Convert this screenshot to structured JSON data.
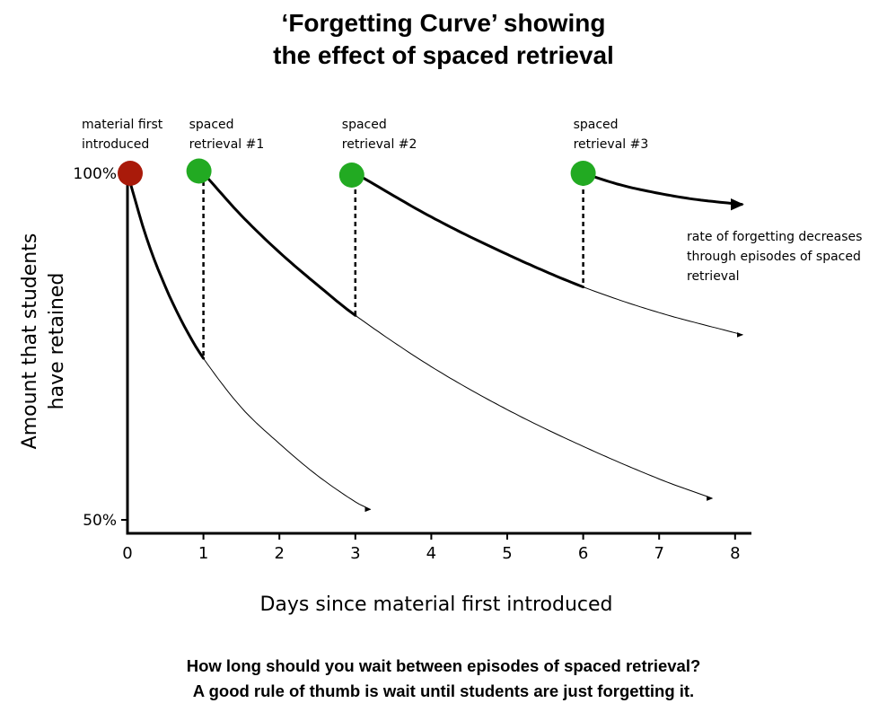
{
  "title_lines": [
    "‘Forgetting Curve’ showing",
    "the effect of spaced retrieval"
  ],
  "footer_lines": [
    "How long should you wait between episodes of spaced retrieval?",
    "A good rule of thumb is wait until students are just forgetting it."
  ],
  "chart_data": {
    "type": "line",
    "title": "‘Forgetting Curve’ showing the effect of spaced retrieval",
    "xlabel": "Days since material first introduced",
    "ylabel_lines": [
      "Amount that students",
      "have retained"
    ],
    "x_ticks": [
      0,
      1,
      2,
      3,
      4,
      5,
      6,
      7,
      8
    ],
    "y_tick_labels": [
      {
        "value": 100,
        "label": "100%"
      },
      {
        "value": 50,
        "label": "50%"
      }
    ],
    "xlim": [
      0,
      8.2
    ],
    "ylim": [
      48,
      102
    ],
    "grid": false,
    "events": [
      {
        "day": 0,
        "retained": 100,
        "label_lines": [
          "material first",
          "introduced"
        ],
        "color": "#a91a0a"
      },
      {
        "day": 1,
        "retained": 100,
        "label_lines": [
          "spaced",
          "retrieval #1"
        ],
        "color": "#22aa22"
      },
      {
        "day": 3,
        "retained": 100,
        "label_lines": [
          "spaced",
          "retrieval #2"
        ],
        "color": "#22aa22"
      },
      {
        "day": 6,
        "retained": 100,
        "label_lines": [
          "spaced",
          "retrieval #3"
        ],
        "color": "#22aa22"
      }
    ],
    "series": [
      {
        "start_day": 0,
        "end_day": 3.2,
        "bold_until": 1,
        "points": [
          [
            0,
            100
          ],
          [
            0.25,
            90.7
          ],
          [
            0.5,
            83.6
          ],
          [
            0.75,
            77.9
          ],
          [
            1,
            73.3
          ],
          [
            1.5,
            66.2
          ],
          [
            2,
            61
          ],
          [
            2.5,
            56.4
          ],
          [
            3,
            52.6
          ],
          [
            3.2,
            51.5
          ]
        ]
      },
      {
        "start_day": 1,
        "end_day": 7.7,
        "bold_until": 3,
        "points": [
          [
            1,
            100
          ],
          [
            1.5,
            93.9
          ],
          [
            2,
            88.6
          ],
          [
            2.5,
            83.9
          ],
          [
            3,
            79.5
          ],
          [
            4,
            72.1
          ],
          [
            5,
            65.9
          ],
          [
            6,
            60.6
          ],
          [
            7,
            55.9
          ],
          [
            7.7,
            53.1
          ]
        ]
      },
      {
        "start_day": 6,
        "end_day": 8.1,
        "bold_until": 8.1,
        "arrow": "bold",
        "points": [
          [
            6,
            100
          ],
          [
            6.5,
            98.3
          ],
          [
            7,
            97.1
          ],
          [
            7.5,
            96.2
          ],
          [
            8.1,
            95.5
          ]
        ]
      },
      {
        "start_day": 3,
        "end_day": 8.1,
        "bold_until": 6,
        "points": [
          [
            3,
            100
          ],
          [
            4,
            93.7
          ],
          [
            5,
            88.3
          ],
          [
            6,
            83.6
          ],
          [
            7,
            79.9
          ],
          [
            8.1,
            76.7
          ]
        ]
      }
    ],
    "annotation_lines": [
      "rate of forgetting decreases",
      "through episodes of spaced",
      "retrieval"
    ]
  }
}
